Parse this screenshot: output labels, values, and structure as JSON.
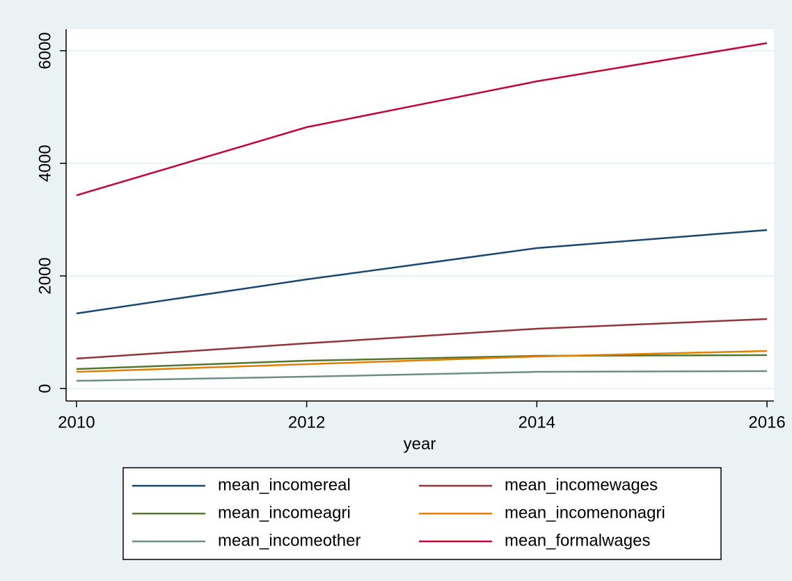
{
  "chart_data": {
    "type": "line",
    "x_label": "year",
    "x": [
      2010,
      2012,
      2014,
      2016
    ],
    "xlim": [
      2009.91,
      2016.06
    ],
    "xticks": [
      2010,
      2012,
      2014,
      2016
    ],
    "ylim": [
      -222,
      6383
    ],
    "yticks": [
      0,
      2000,
      4000,
      6000
    ],
    "grid": true,
    "legend": "bottom",
    "series": [
      {
        "name": "mean_incomereal",
        "color": "#1a476f",
        "values": [
          1333,
          1938,
          2494,
          2815
        ]
      },
      {
        "name": "mean_incomewages",
        "color": "#90353b",
        "values": [
          531,
          802,
          1062,
          1235
        ]
      },
      {
        "name": "mean_incomeagri",
        "color": "#55752f",
        "values": [
          346,
          494,
          580,
          593
        ]
      },
      {
        "name": "mean_incomenonagri",
        "color": "#e37e00",
        "values": [
          296,
          432,
          568,
          667
        ]
      },
      {
        "name": "mean_incomeother",
        "color": "#6e8e84",
        "values": [
          136,
          210,
          296,
          309
        ]
      },
      {
        "name": "mean_formalwages",
        "color": "#c10534",
        "values": [
          3432,
          4642,
          5457,
          6136
        ]
      }
    ]
  }
}
